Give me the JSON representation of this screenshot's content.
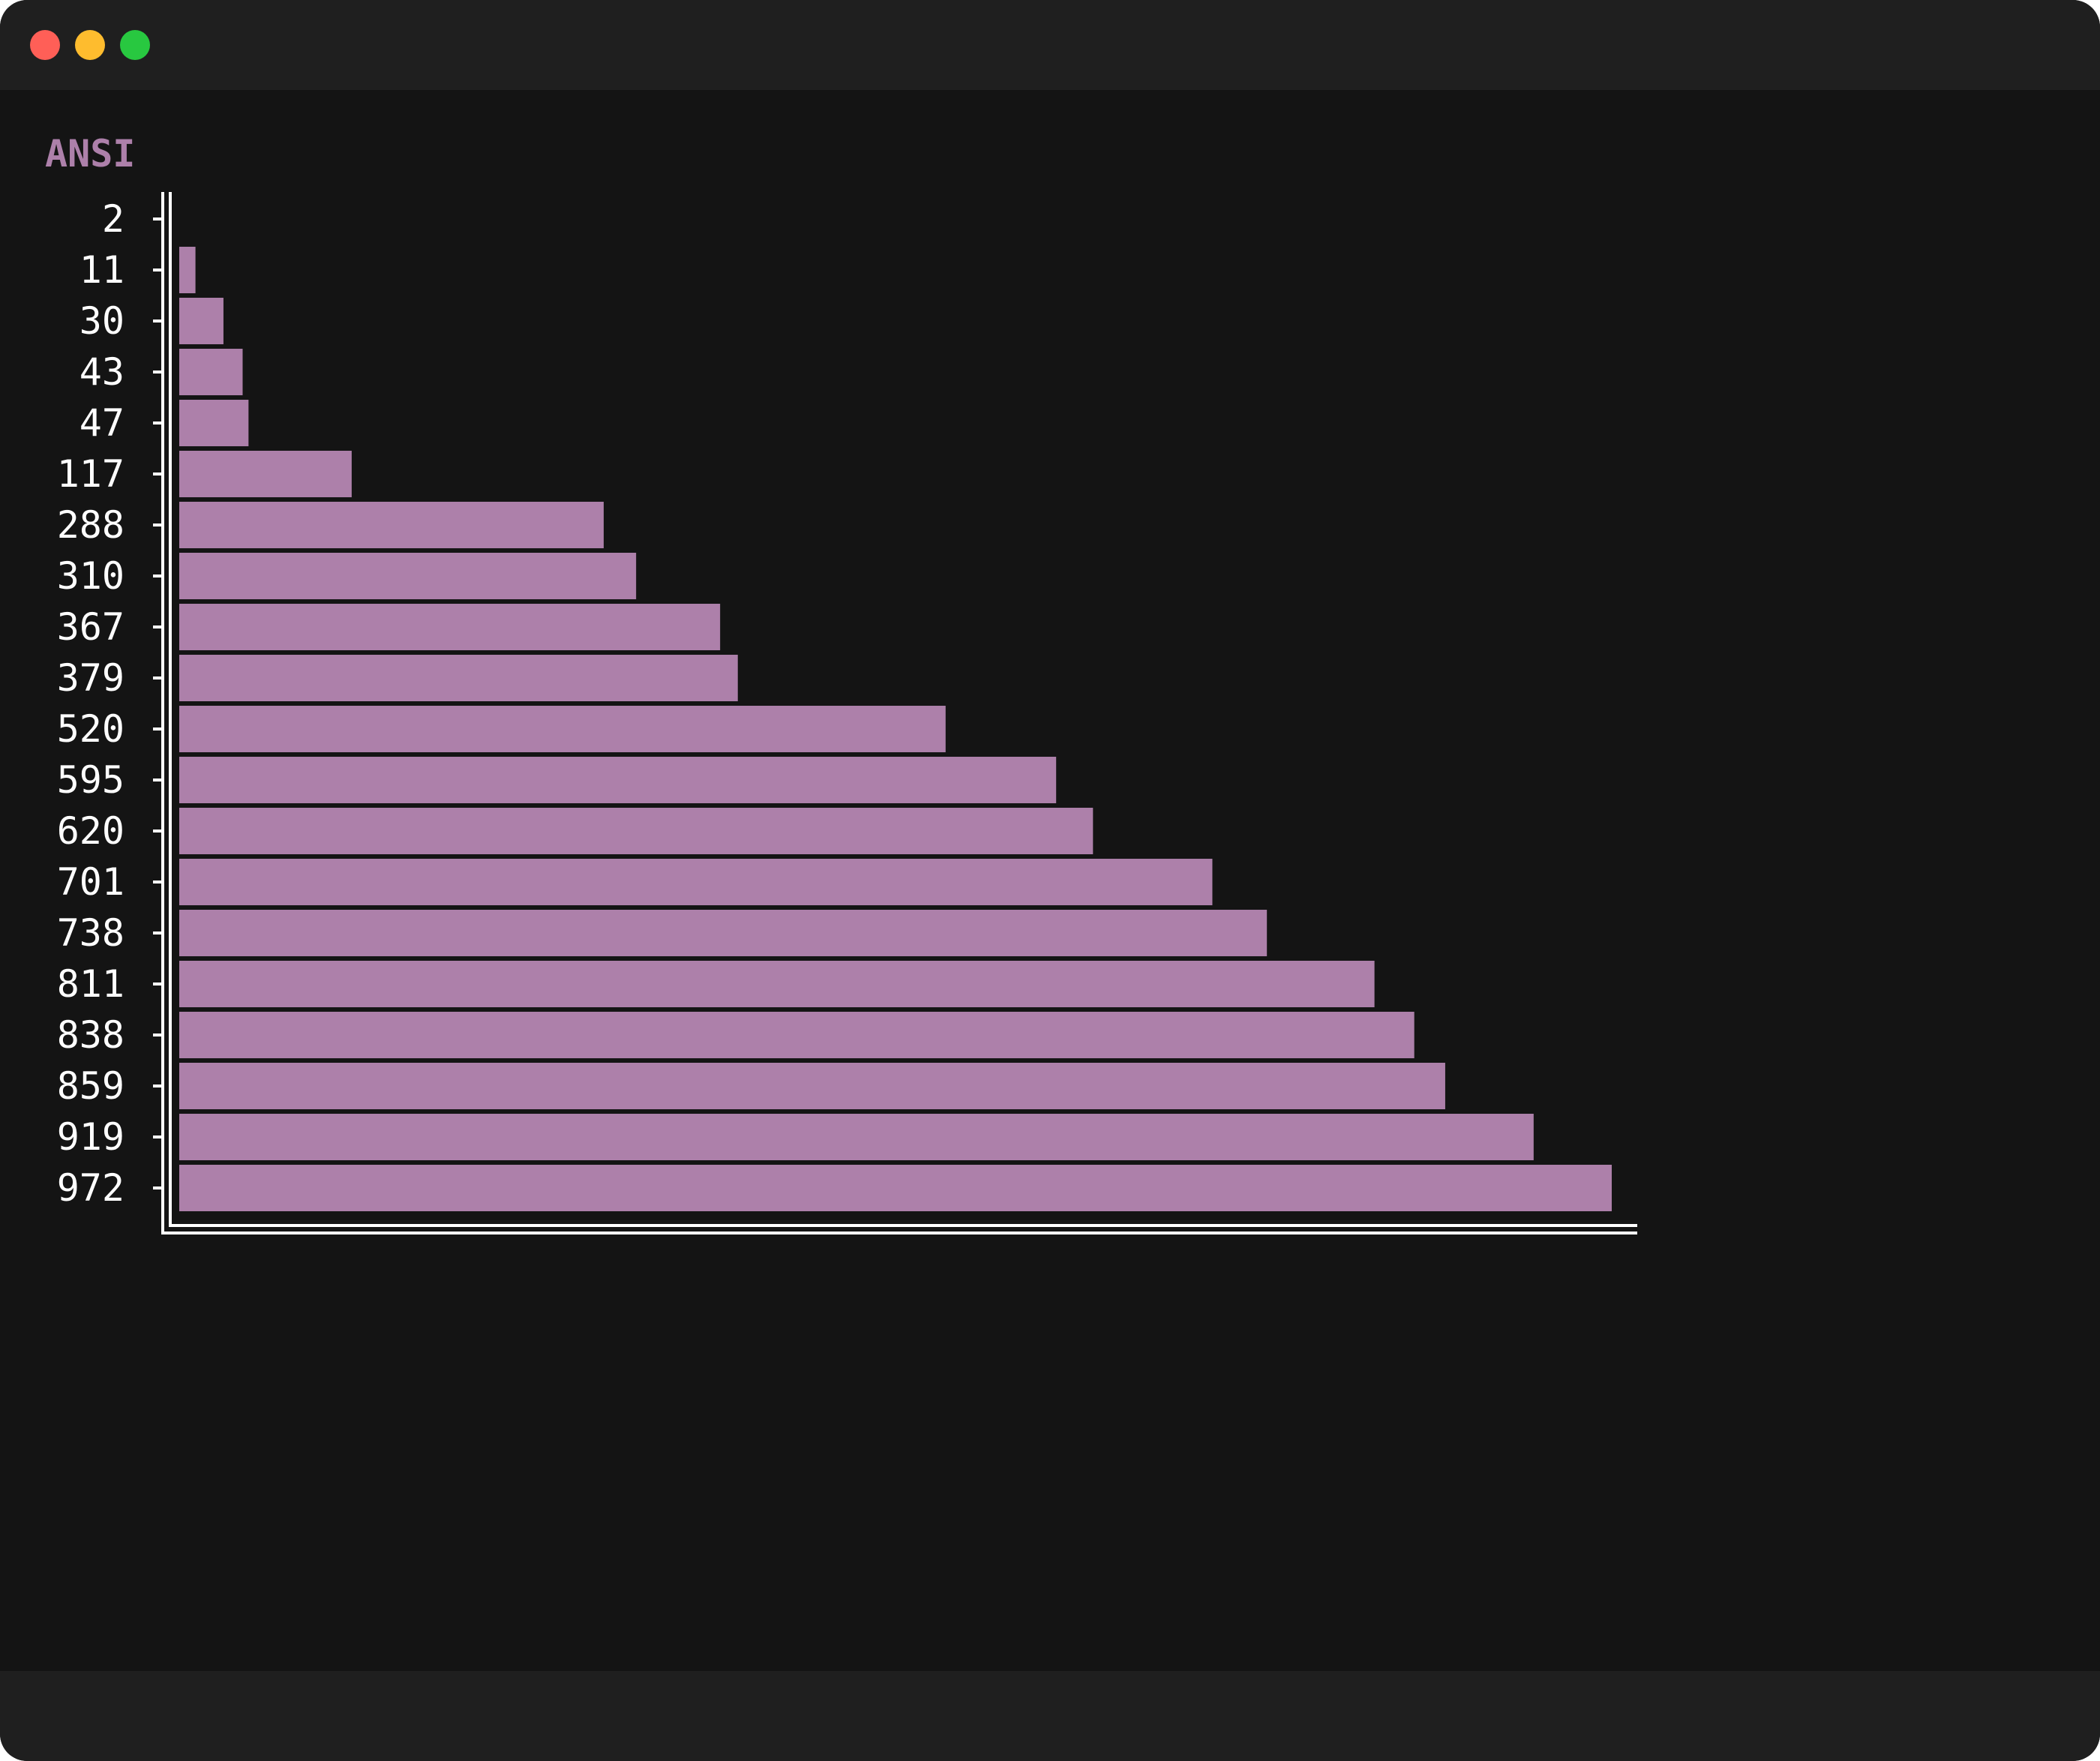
{
  "window": {
    "controls": {
      "close_color": "#ff5f57",
      "minimize_color": "#febc2e",
      "zoom_color": "#28c840"
    }
  },
  "colors": {
    "background": "#141414",
    "bar": "#ad80aa",
    "axis": "#ffffff",
    "text": "#ffffff"
  },
  "chart_data": {
    "type": "bar",
    "orientation": "horizontal",
    "title": "ANSI",
    "xlabel": "",
    "ylabel": "",
    "grid": false,
    "categories": [
      "2",
      "11",
      "30",
      "43",
      "47",
      "117",
      "288",
      "310",
      "367",
      "379",
      "520",
      "595",
      "620",
      "701",
      "738",
      "811",
      "838",
      "859",
      "919",
      "972"
    ],
    "values": [
      2,
      11,
      30,
      43,
      47,
      117,
      288,
      310,
      367,
      379,
      520,
      595,
      620,
      701,
      738,
      811,
      838,
      859,
      919,
      972
    ],
    "xlim": [
      0,
      972
    ]
  }
}
